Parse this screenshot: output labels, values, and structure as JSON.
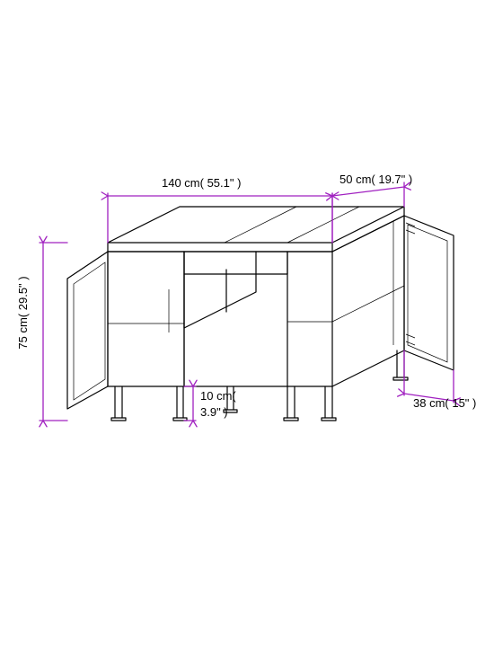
{
  "dim_color": "#a020c0",
  "labels": {
    "width": "140 cm( 55.1\" )",
    "depth": "50 cm( 19.7\" )",
    "height": "75 cm( 29.5\" )",
    "leg": "10 cm( 3.9\" )",
    "door": "38 cm( 15\" )"
  }
}
